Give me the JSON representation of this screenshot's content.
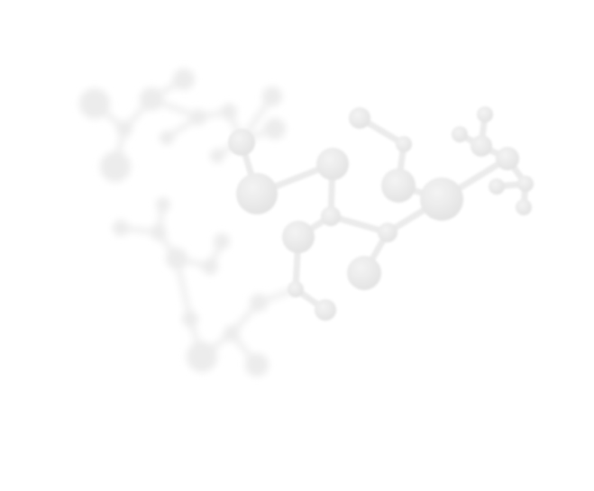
{
  "page": {
    "background": "#ffffff"
  },
  "illustration": {
    "subject": "molecule-network",
    "atom_color": "#e6e6e6",
    "atom_highlight": "#f3f3f3",
    "bond_color": "#ececec",
    "faded_atom_color": "#ededed",
    "faded_bond_color": "#f1f1f1"
  }
}
